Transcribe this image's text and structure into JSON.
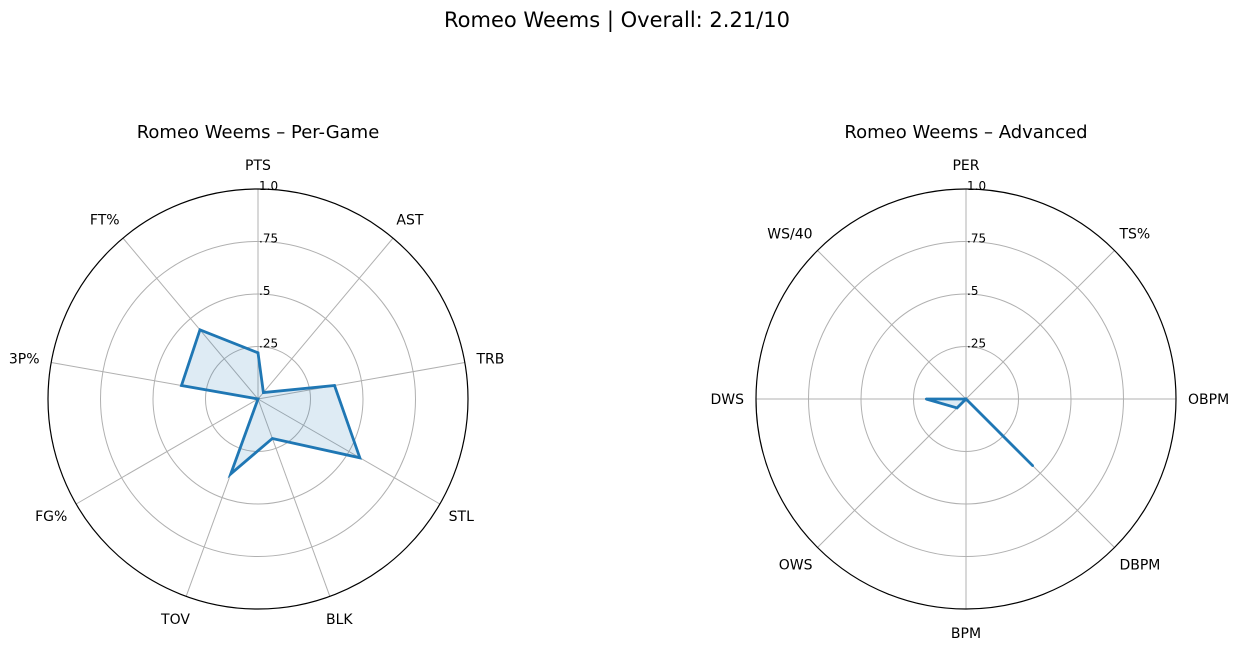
{
  "page": {
    "suptitle": "Romeo Weems | Overall: 2.21/10"
  },
  "chart_data": [
    {
      "type": "radar",
      "title": "Romeo Weems – Per-Game",
      "categories": [
        "PTS",
        "AST",
        "TRB",
        "STL",
        "BLK",
        "TOV",
        "FG%",
        "3P%",
        "FT%"
      ],
      "series": [
        {
          "name": "",
          "values": [
            0.22,
            0.04,
            0.37,
            0.56,
            0.2,
            0.38,
            0.0,
            0.37,
            0.43
          ]
        }
      ],
      "rlim": [
        0,
        1
      ],
      "rticks": [
        0.25,
        0.5,
        0.75,
        1.0
      ],
      "rtick_labels": [
        ".25",
        ".5",
        ".75",
        "1.0"
      ],
      "grid": true,
      "fill": true,
      "color": "#1f77b4"
    },
    {
      "type": "radar",
      "title": "Romeo Weems – Advanced",
      "categories": [
        "PER",
        "TS%",
        "OBPM",
        "DBPM",
        "BPM",
        "OWS",
        "DWS",
        "WS/40"
      ],
      "series": [
        {
          "name": "",
          "values": [
            0.0,
            0.0,
            0.0,
            0.45,
            0.0,
            0.06,
            0.19,
            0.0
          ]
        }
      ],
      "rlim": [
        0,
        1
      ],
      "rticks": [
        0.25,
        0.5,
        0.75,
        1.0
      ],
      "rtick_labels": [
        ".25",
        ".5",
        ".75",
        "1.0"
      ],
      "grid": true,
      "fill": true,
      "color": "#1f77b4"
    }
  ]
}
